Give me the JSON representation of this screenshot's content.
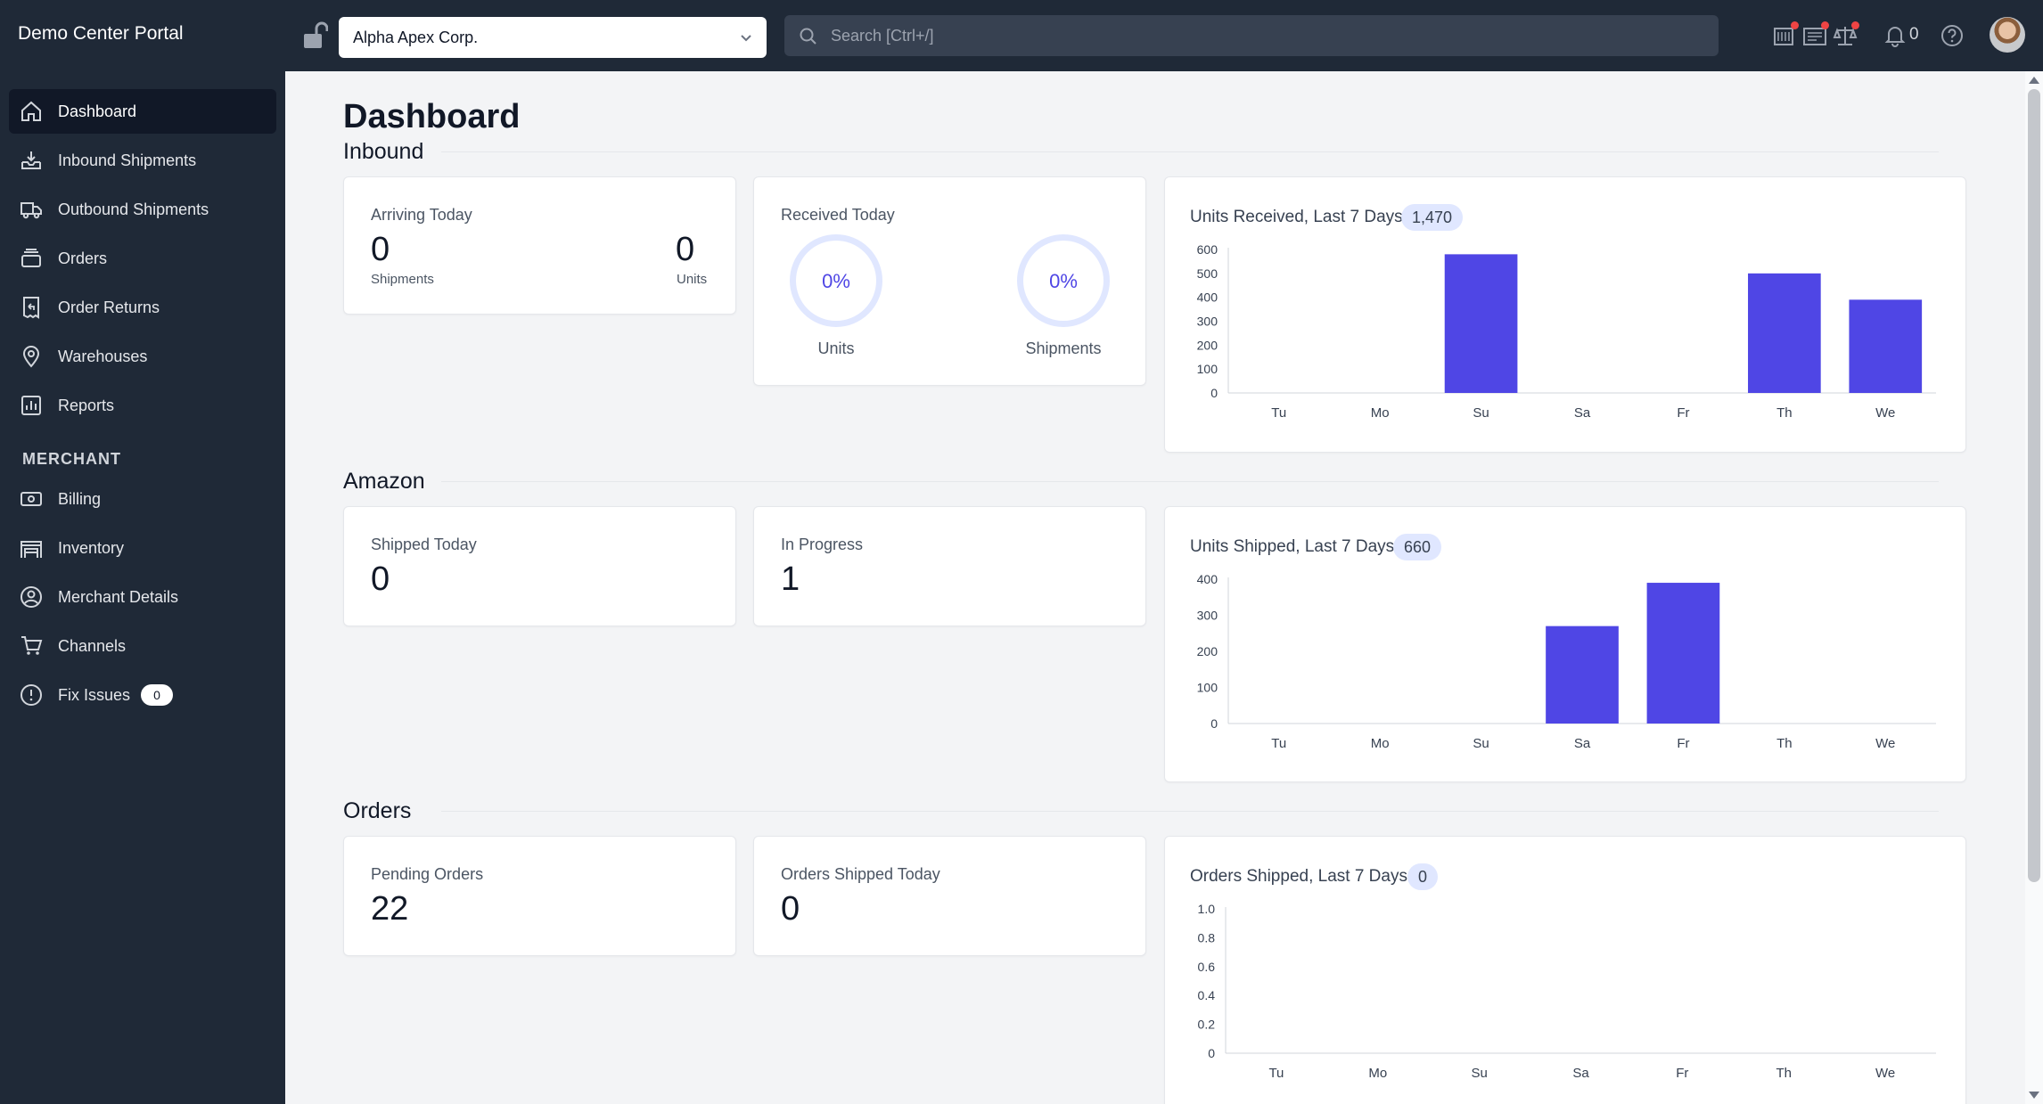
{
  "app": {
    "title": "Demo Center Portal"
  },
  "topbar": {
    "org_select_value": "Alpha Apex Corp.",
    "search_placeholder": "Search [Ctrl+/]",
    "notification_count": "0"
  },
  "sidebar": {
    "items": [
      {
        "label": "Dashboard",
        "icon": "home-icon",
        "active": true
      },
      {
        "label": "Inbound Shipments",
        "icon": "inbox-download-icon"
      },
      {
        "label": "Outbound Shipments",
        "icon": "truck-icon"
      },
      {
        "label": "Orders",
        "icon": "stack-icon"
      },
      {
        "label": "Order Returns",
        "icon": "return-receipt-icon"
      },
      {
        "label": "Warehouses",
        "icon": "map-pin-icon"
      },
      {
        "label": "Reports",
        "icon": "bar-chart-icon"
      }
    ],
    "section_label": "MERCHANT",
    "merchant_items": [
      {
        "label": "Billing",
        "icon": "money-icon"
      },
      {
        "label": "Inventory",
        "icon": "warehouse-icon"
      },
      {
        "label": "Merchant Details",
        "icon": "user-circle-icon"
      },
      {
        "label": "Channels",
        "icon": "cart-icon"
      },
      {
        "label": "Fix Issues",
        "icon": "alert-circle-icon",
        "badge": "0"
      }
    ]
  },
  "main": {
    "title": "Dashboard",
    "inbound": {
      "title": "Inbound",
      "arriving": {
        "label": "Arriving Today",
        "shipments_value": "0",
        "shipments_label": "Shipments",
        "units_value": "0",
        "units_label": "Units"
      },
      "received": {
        "label": "Received Today",
        "units_pct": "0%",
        "units_label": "Units",
        "shipments_pct": "0%",
        "shipments_label": "Shipments"
      }
    },
    "amazon": {
      "title": "Amazon",
      "shipped_today": {
        "label": "Shipped Today",
        "value": "0"
      },
      "in_progress": {
        "label": "In Progress",
        "value": "1"
      }
    },
    "orders": {
      "title": "Orders",
      "pending": {
        "label": "Pending Orders",
        "value": "22"
      },
      "shipped_today": {
        "label": "Orders Shipped Today",
        "value": "0"
      }
    }
  },
  "colors": {
    "bar": "#4f46e5",
    "sidebar": "#1f2937",
    "pill": "#e0e7ff"
  },
  "chart_data": [
    {
      "type": "bar",
      "title": "Units Received, Last 7 Days",
      "total": "1,470",
      "categories": [
        "Tu",
        "Mo",
        "Su",
        "Sa",
        "Fr",
        "Th",
        "We"
      ],
      "values": [
        0,
        0,
        580,
        0,
        0,
        500,
        390
      ],
      "yticks": [
        0,
        100,
        200,
        300,
        400,
        500,
        600
      ],
      "ylim": [
        0,
        600
      ],
      "tick_labels": [
        "0",
        "100",
        "200",
        "300",
        "400",
        "500",
        "600"
      ]
    },
    {
      "type": "bar",
      "title": "Units Shipped, Last 7 Days",
      "total": "660",
      "categories": [
        "Tu",
        "Mo",
        "Su",
        "Sa",
        "Fr",
        "Th",
        "We"
      ],
      "values": [
        0,
        0,
        0,
        270,
        390,
        0,
        0
      ],
      "yticks": [
        0,
        100,
        200,
        300,
        400
      ],
      "ylim": [
        0,
        400
      ],
      "tick_labels": [
        "0",
        "100",
        "200",
        "300",
        "400"
      ]
    },
    {
      "type": "bar",
      "title": "Orders Shipped, Last 7 Days",
      "total": "0",
      "categories": [
        "Tu",
        "Mo",
        "Su",
        "Sa",
        "Fr",
        "Th",
        "We"
      ],
      "values": [
        0,
        0,
        0,
        0,
        0,
        0,
        0
      ],
      "yticks": [
        0,
        0.2,
        0.4,
        0.6,
        0.8,
        1.0
      ],
      "ylim": [
        0,
        1
      ],
      "tick_labels": [
        "0",
        "0.2",
        "0.4",
        "0.6",
        "0.8",
        "1.0"
      ]
    }
  ]
}
